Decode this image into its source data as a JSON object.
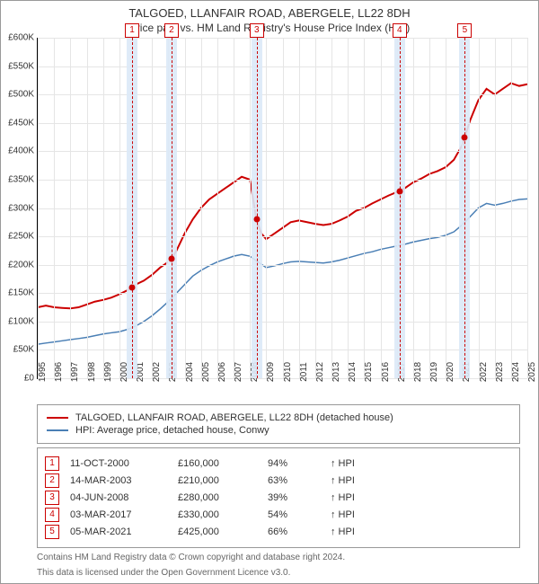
{
  "title": "TALGOED, LLANFAIR ROAD, ABERGELE, LL22 8DH",
  "subtitle": "Price paid vs. HM Land Registry's House Price Index (HPI)",
  "chart": {
    "type": "line",
    "y": {
      "min": 0,
      "max": 600000,
      "step": 50000,
      "prefix": "£",
      "ticks": [
        "£0",
        "£50K",
        "£100K",
        "£150K",
        "£200K",
        "£250K",
        "£300K",
        "£350K",
        "£400K",
        "£450K",
        "£500K",
        "£550K",
        "£600K"
      ]
    },
    "x": {
      "min": 1995,
      "max": 2025,
      "years": [
        1995,
        1996,
        1997,
        1998,
        1999,
        2000,
        2001,
        2002,
        2003,
        2004,
        2005,
        2006,
        2007,
        2008,
        2009,
        2010,
        2011,
        2012,
        2013,
        2014,
        2015,
        2016,
        2017,
        2018,
        2019,
        2020,
        2021,
        2022,
        2023,
        2024,
        2025
      ]
    },
    "grid_color": "#e5e5e5",
    "band_color": "#dbe9f7",
    "marker_color": "#cc0000",
    "bg": "#ffffff",
    "series": [
      {
        "name": "TALGOED, LLANFAIR ROAD, ABERGELE, LL22 8DH (detached house)",
        "color": "#cc0000",
        "width": 2,
        "points": [
          [
            1995,
            125000
          ],
          [
            1995.5,
            128000
          ],
          [
            1996,
            125000
          ],
          [
            1996.5,
            124000
          ],
          [
            1997,
            123000
          ],
          [
            1997.5,
            125000
          ],
          [
            1998,
            130000
          ],
          [
            1998.5,
            135000
          ],
          [
            1999,
            138000
          ],
          [
            1999.5,
            142000
          ],
          [
            2000,
            148000
          ],
          [
            2000.5,
            155000
          ],
          [
            2000.78,
            160000
          ],
          [
            2001,
            165000
          ],
          [
            2001.5,
            172000
          ],
          [
            2002,
            182000
          ],
          [
            2002.5,
            195000
          ],
          [
            2003,
            205000
          ],
          [
            2003.2,
            210000
          ],
          [
            2003.5,
            225000
          ],
          [
            2004,
            255000
          ],
          [
            2004.5,
            280000
          ],
          [
            2005,
            300000
          ],
          [
            2005.5,
            315000
          ],
          [
            2006,
            325000
          ],
          [
            2006.5,
            335000
          ],
          [
            2007,
            345000
          ],
          [
            2007.5,
            355000
          ],
          [
            2008,
            350000
          ],
          [
            2008.4,
            280000
          ],
          [
            2008.7,
            255000
          ],
          [
            2009,
            245000
          ],
          [
            2009.5,
            255000
          ],
          [
            2010,
            265000
          ],
          [
            2010.5,
            275000
          ],
          [
            2011,
            278000
          ],
          [
            2011.5,
            275000
          ],
          [
            2012,
            272000
          ],
          [
            2012.5,
            270000
          ],
          [
            2013,
            272000
          ],
          [
            2013.5,
            278000
          ],
          [
            2014,
            285000
          ],
          [
            2014.5,
            295000
          ],
          [
            2015,
            300000
          ],
          [
            2015.5,
            308000
          ],
          [
            2016,
            315000
          ],
          [
            2016.5,
            322000
          ],
          [
            2017,
            328000
          ],
          [
            2017.17,
            330000
          ],
          [
            2017.5,
            335000
          ],
          [
            2018,
            345000
          ],
          [
            2018.5,
            352000
          ],
          [
            2019,
            360000
          ],
          [
            2019.5,
            365000
          ],
          [
            2020,
            372000
          ],
          [
            2020.5,
            385000
          ],
          [
            2021,
            410000
          ],
          [
            2021.17,
            425000
          ],
          [
            2021.5,
            455000
          ],
          [
            2022,
            490000
          ],
          [
            2022.5,
            510000
          ],
          [
            2023,
            500000
          ],
          [
            2023.5,
            510000
          ],
          [
            2024,
            520000
          ],
          [
            2024.5,
            515000
          ],
          [
            2025,
            518000
          ]
        ]
      },
      {
        "name": "HPI: Average price, detached house, Conwy",
        "color": "#4a7fb5",
        "width": 1.5,
        "points": [
          [
            1995,
            60000
          ],
          [
            1995.5,
            62000
          ],
          [
            1996,
            64000
          ],
          [
            1996.5,
            66000
          ],
          [
            1997,
            68000
          ],
          [
            1997.5,
            70000
          ],
          [
            1998,
            72000
          ],
          [
            1998.5,
            75000
          ],
          [
            1999,
            78000
          ],
          [
            1999.5,
            80000
          ],
          [
            2000,
            82000
          ],
          [
            2000.5,
            86000
          ],
          [
            2001,
            92000
          ],
          [
            2001.5,
            100000
          ],
          [
            2002,
            110000
          ],
          [
            2002.5,
            122000
          ],
          [
            2003,
            135000
          ],
          [
            2003.5,
            150000
          ],
          [
            2004,
            165000
          ],
          [
            2004.5,
            180000
          ],
          [
            2005,
            190000
          ],
          [
            2005.5,
            198000
          ],
          [
            2006,
            205000
          ],
          [
            2006.5,
            210000
          ],
          [
            2007,
            215000
          ],
          [
            2007.5,
            218000
          ],
          [
            2008,
            215000
          ],
          [
            2008.5,
            205000
          ],
          [
            2009,
            195000
          ],
          [
            2009.5,
            198000
          ],
          [
            2010,
            202000
          ],
          [
            2010.5,
            205000
          ],
          [
            2011,
            206000
          ],
          [
            2011.5,
            205000
          ],
          [
            2012,
            204000
          ],
          [
            2012.5,
            203000
          ],
          [
            2013,
            205000
          ],
          [
            2013.5,
            208000
          ],
          [
            2014,
            212000
          ],
          [
            2014.5,
            216000
          ],
          [
            2015,
            220000
          ],
          [
            2015.5,
            223000
          ],
          [
            2016,
            227000
          ],
          [
            2016.5,
            230000
          ],
          [
            2017,
            233000
          ],
          [
            2017.5,
            236000
          ],
          [
            2018,
            240000
          ],
          [
            2018.5,
            243000
          ],
          [
            2019,
            246000
          ],
          [
            2019.5,
            248000
          ],
          [
            2020,
            252000
          ],
          [
            2020.5,
            258000
          ],
          [
            2021,
            270000
          ],
          [
            2021.5,
            285000
          ],
          [
            2022,
            300000
          ],
          [
            2022.5,
            308000
          ],
          [
            2023,
            305000
          ],
          [
            2023.5,
            308000
          ],
          [
            2024,
            312000
          ],
          [
            2024.5,
            315000
          ],
          [
            2025,
            316000
          ]
        ]
      }
    ],
    "markers": [
      {
        "n": "1",
        "year": 2000.78,
        "price": 160000
      },
      {
        "n": "2",
        "year": 2003.2,
        "price": 210000
      },
      {
        "n": "3",
        "year": 2008.42,
        "price": 280000
      },
      {
        "n": "4",
        "year": 2017.17,
        "price": 330000
      },
      {
        "n": "5",
        "year": 2021.17,
        "price": 425000
      }
    ]
  },
  "legend": [
    {
      "color": "#cc0000",
      "label": "TALGOED, LLANFAIR ROAD, ABERGELE, LL22 8DH (detached house)"
    },
    {
      "color": "#4a7fb5",
      "label": "HPI: Average price, detached house, Conwy"
    }
  ],
  "transactions": [
    {
      "n": "1",
      "date": "11-OCT-2000",
      "price": "£160,000",
      "pct": "94%",
      "note": "↑ HPI"
    },
    {
      "n": "2",
      "date": "14-MAR-2003",
      "price": "£210,000",
      "pct": "63%",
      "note": "↑ HPI"
    },
    {
      "n": "3",
      "date": "04-JUN-2008",
      "price": "£280,000",
      "pct": "39%",
      "note": "↑ HPI"
    },
    {
      "n": "4",
      "date": "03-MAR-2017",
      "price": "£330,000",
      "pct": "54%",
      "note": "↑ HPI"
    },
    {
      "n": "5",
      "date": "05-MAR-2021",
      "price": "£425,000",
      "pct": "66%",
      "note": "↑ HPI"
    }
  ],
  "footer1": "Contains HM Land Registry data © Crown copyright and database right 2024.",
  "footer2": "This data is licensed under the Open Government Licence v3.0."
}
